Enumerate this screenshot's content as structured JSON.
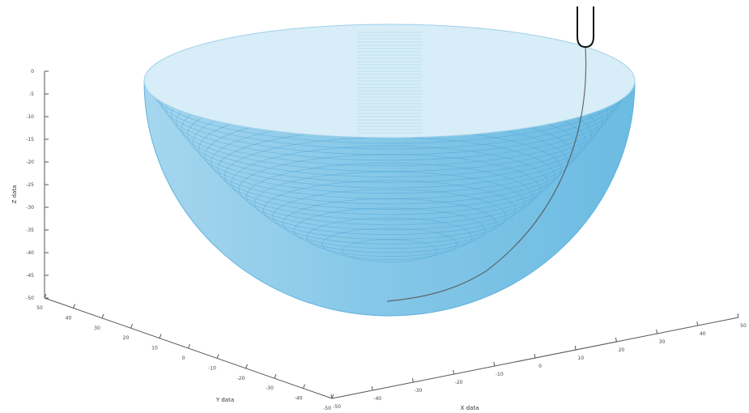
{
  "chart_data": {
    "type": "surface-3d",
    "title": "",
    "xlabel": "X data",
    "ylabel": "Y data",
    "zlabel": "Z data",
    "surface": {
      "shape": "hemisphere-bowl",
      "color": "#7fc4e6",
      "edge_color": "#4aa3d6",
      "rim_color": "#d9eef8"
    },
    "trajectory": {
      "color": "#555555",
      "marker": "probe"
    },
    "grid": false,
    "z_ticks": [
      "0",
      "-5",
      "-10",
      "-15",
      "-20",
      "-25",
      "-30",
      "-35",
      "-40",
      "-45",
      "-50"
    ],
    "y_ticks": [
      "50",
      "40",
      "30",
      "20",
      "10",
      "0",
      "-10",
      "-20",
      "-30",
      "-40",
      "-50"
    ],
    "x_ticks": [
      "-50",
      "-40",
      "-30",
      "-20",
      "-10",
      "0",
      "10",
      "20",
      "30",
      "40",
      "50"
    ]
  }
}
